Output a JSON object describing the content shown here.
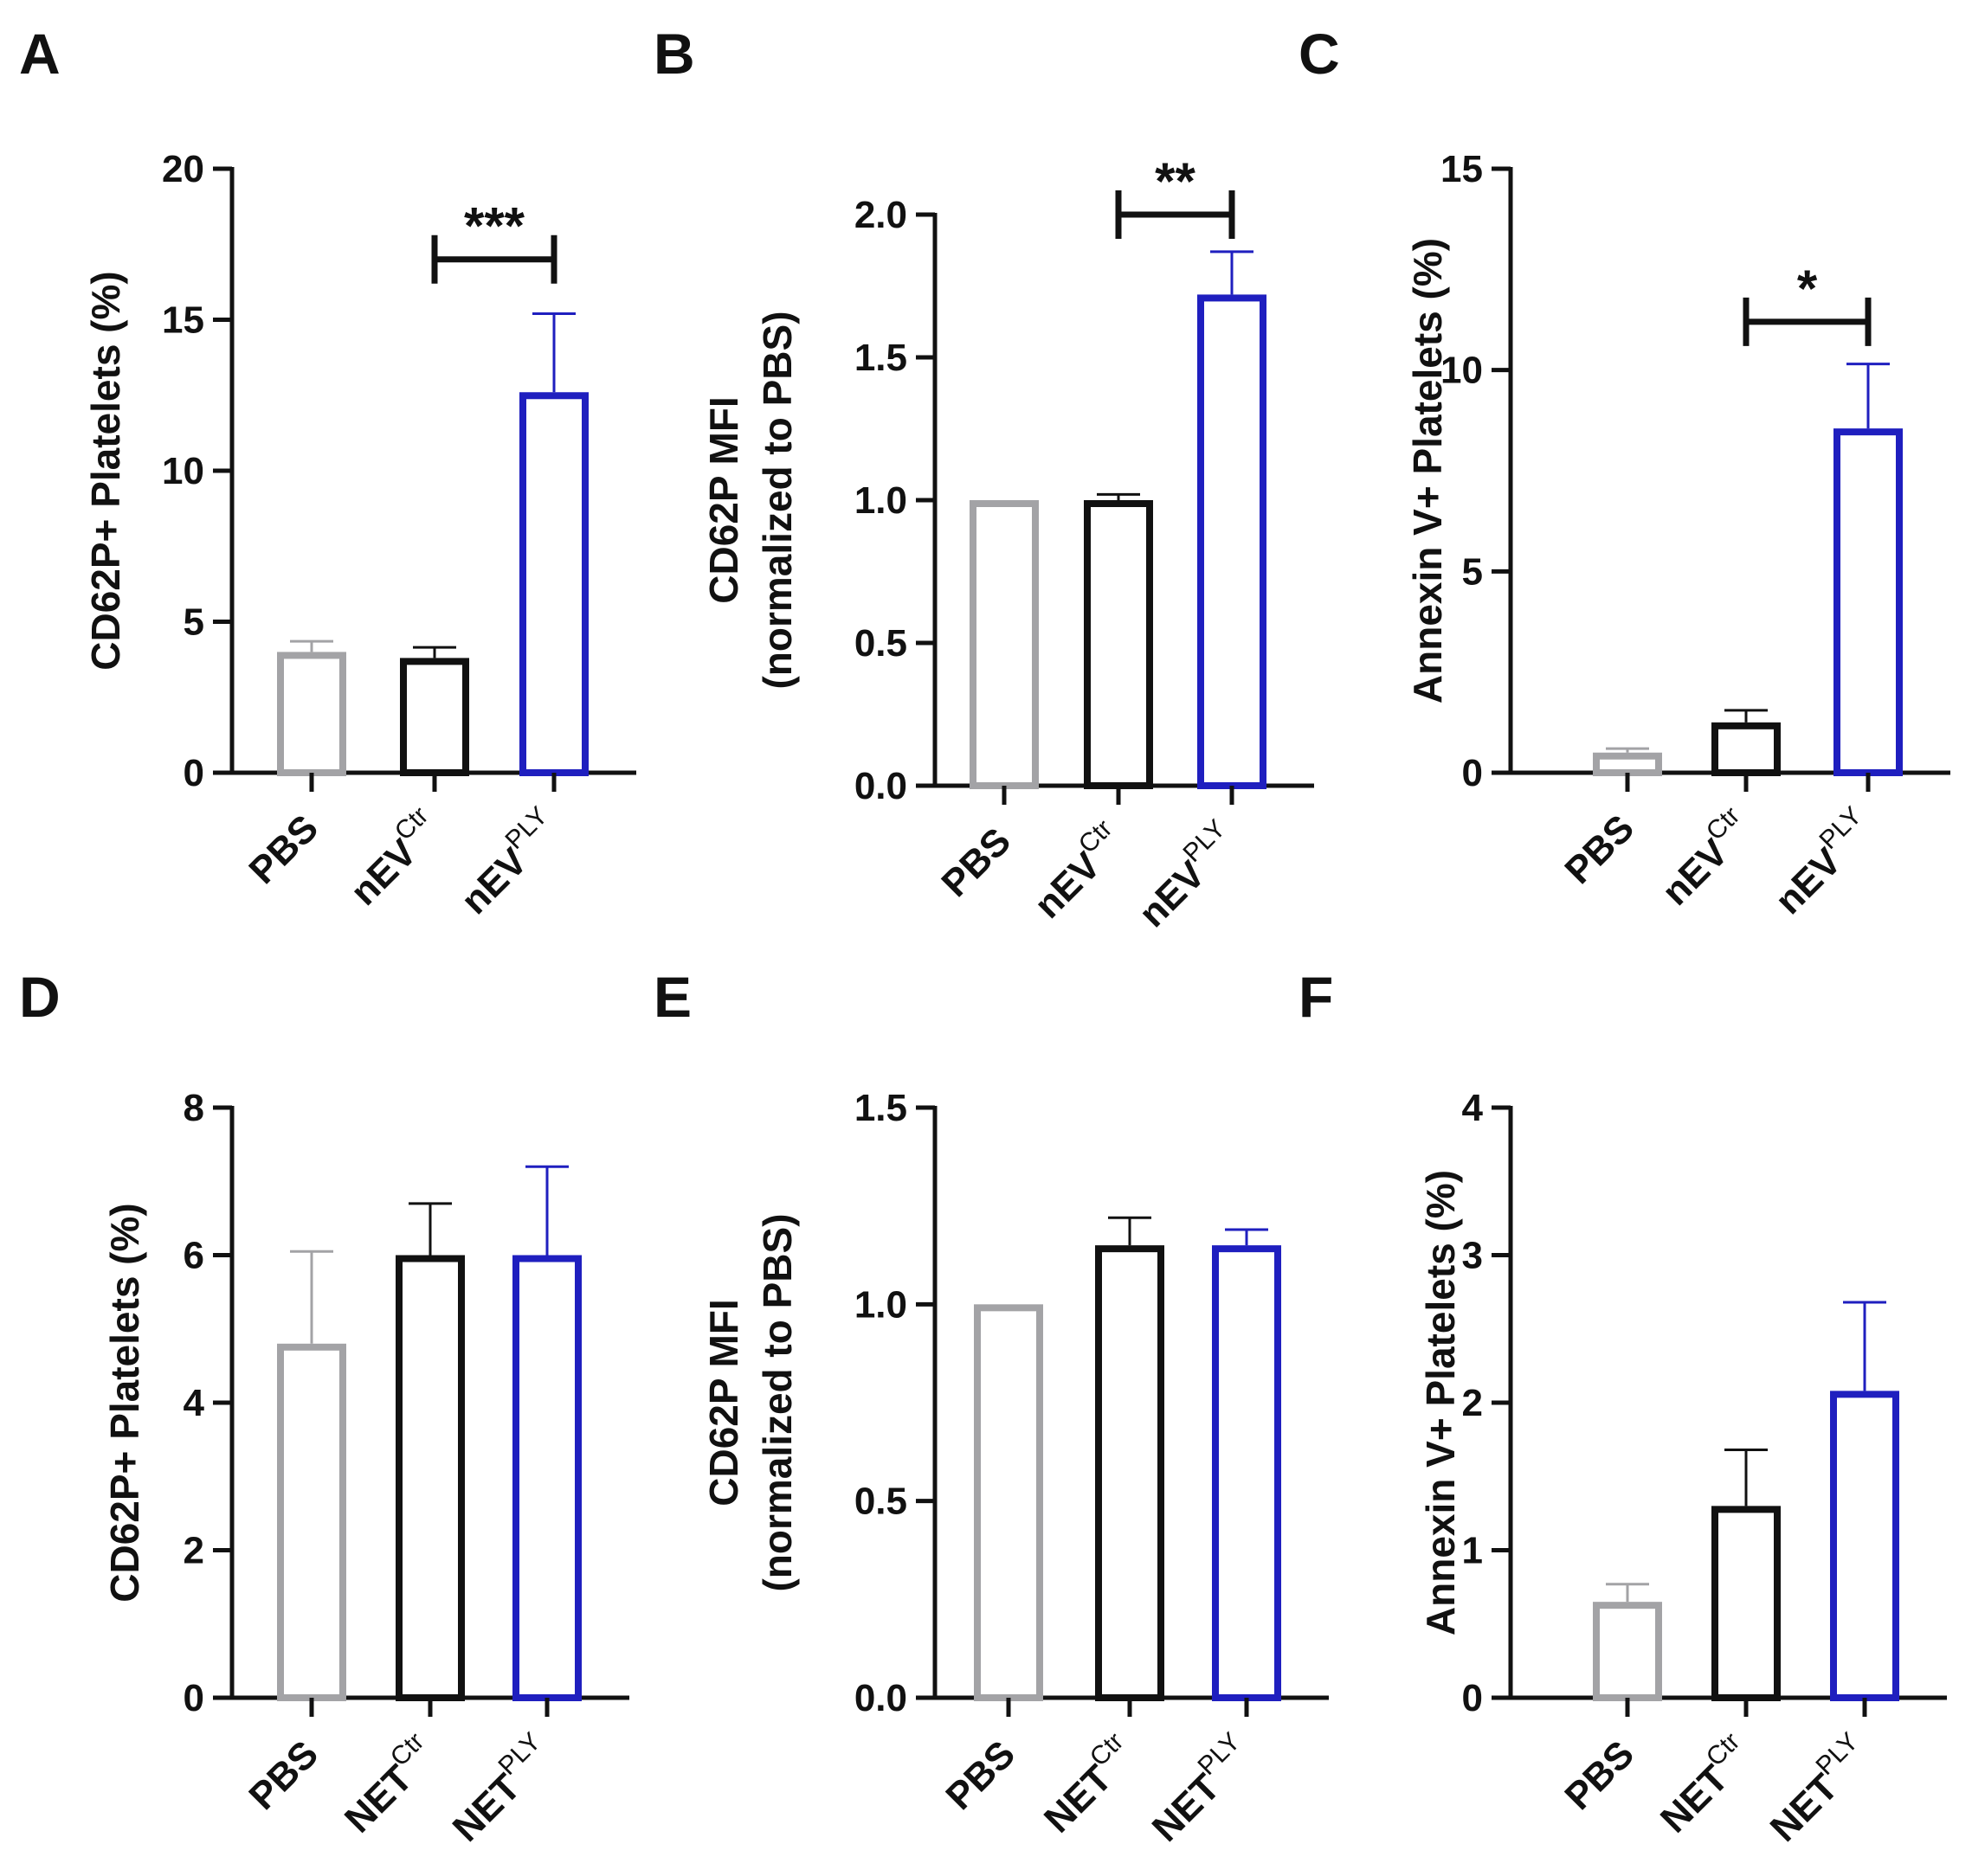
{
  "colors": {
    "PBS": "#a3a3a6",
    "Ctr": "#111111",
    "PLY": "#1f1fbf"
  },
  "chart_data": [
    {
      "type": "bar",
      "panel": "A",
      "ylabel": "CD62P+ Platelets (%)",
      "ylim": [
        0,
        20
      ],
      "yticks": [
        0,
        5,
        10,
        15,
        20
      ],
      "ytick_labels": [
        "0",
        "5",
        "10",
        "15",
        "20"
      ],
      "categories": [
        {
          "base": "PBS",
          "sup": "",
          "key": "PBS"
        },
        {
          "base": "nEV",
          "sup": "Ctr",
          "key": "Ctr"
        },
        {
          "base": "nEV",
          "sup": "PLY",
          "key": "PLY"
        }
      ],
      "values": [
        4.0,
        3.8,
        12.6
      ],
      "errors": [
        0.35,
        0.35,
        2.6
      ],
      "significance": {
        "from": 1,
        "to": 2,
        "label": "***",
        "y": 17.0
      }
    },
    {
      "type": "bar",
      "panel": "B",
      "ylabel": [
        "CD62P MFI",
        "(normalized to PBS)"
      ],
      "ylim": [
        0,
        2.0
      ],
      "yticks": [
        0,
        0.5,
        1.0,
        1.5,
        2.0
      ],
      "ytick_labels": [
        "0.0",
        "0.5",
        "1.0",
        "1.5",
        "2.0"
      ],
      "categories": [
        {
          "base": "PBS",
          "sup": "",
          "key": "PBS"
        },
        {
          "base": "nEV",
          "sup": "Ctr",
          "key": "Ctr"
        },
        {
          "base": "nEV",
          "sup": "PLY",
          "key": "PLY"
        }
      ],
      "values": [
        1.0,
        1.0,
        1.72
      ],
      "errors": [
        0.0,
        0.02,
        0.15
      ],
      "significance": {
        "from": 1,
        "to": 2,
        "label": "**",
        "y": 2.0
      }
    },
    {
      "type": "bar",
      "panel": "C",
      "ylabel": "Annexin V+ Platelets (%)",
      "ylim": [
        0,
        15
      ],
      "yticks": [
        0,
        5,
        10,
        15
      ],
      "ytick_labels": [
        "0",
        "5",
        "10",
        "15"
      ],
      "categories": [
        {
          "base": "PBS",
          "sup": "",
          "key": "PBS"
        },
        {
          "base": "nEV",
          "sup": "Ctr",
          "key": "Ctr"
        },
        {
          "base": "nEV",
          "sup": "PLY",
          "key": "PLY"
        }
      ],
      "values": [
        0.5,
        1.25,
        8.55
      ],
      "errors": [
        0.1,
        0.3,
        1.6
      ],
      "significance": {
        "from": 1,
        "to": 2,
        "label": "*",
        "y": 11.2
      }
    },
    {
      "type": "bar",
      "panel": "D",
      "ylabel": "CD62P+ Platelets (%)",
      "ylim": [
        0,
        8
      ],
      "yticks": [
        0,
        2,
        4,
        6,
        8
      ],
      "ytick_labels": [
        "0",
        "2",
        "4",
        "6",
        "8"
      ],
      "categories": [
        {
          "base": "PBS",
          "sup": "",
          "key": "PBS"
        },
        {
          "base": "NET",
          "sup": "Ctr",
          "key": "Ctr"
        },
        {
          "base": "NET",
          "sup": "PLY",
          "key": "PLY"
        }
      ],
      "values": [
        4.8,
        6.0,
        6.0
      ],
      "errors": [
        1.25,
        0.7,
        1.2
      ],
      "significance": null
    },
    {
      "type": "bar",
      "panel": "E",
      "ylabel": [
        "CD62P MFI",
        "(normalized to PBS)"
      ],
      "ylim": [
        0,
        1.5
      ],
      "yticks": [
        0,
        0.5,
        1.0,
        1.5
      ],
      "ytick_labels": [
        "0.0",
        "0.5",
        "1.0",
        "1.5"
      ],
      "categories": [
        {
          "base": "PBS",
          "sup": "",
          "key": "PBS"
        },
        {
          "base": "NET",
          "sup": "Ctr",
          "key": "Ctr"
        },
        {
          "base": "NET",
          "sup": "PLY",
          "key": "PLY"
        }
      ],
      "values": [
        1.0,
        1.15,
        1.15
      ],
      "errors": [
        0.0,
        0.07,
        0.04
      ],
      "significance": null
    },
    {
      "type": "bar",
      "panel": "F",
      "ylabel": "Annexin V+ Platelets (%)",
      "ylim": [
        0,
        4
      ],
      "yticks": [
        0,
        1,
        2,
        3,
        4
      ],
      "ytick_labels": [
        "0",
        "1",
        "2",
        "3",
        "4"
      ],
      "categories": [
        {
          "base": "PBS",
          "sup": "",
          "key": "PBS"
        },
        {
          "base": "NET",
          "sup": "Ctr",
          "key": "Ctr"
        },
        {
          "base": "NET",
          "sup": "PLY",
          "key": "PLY"
        }
      ],
      "values": [
        0.65,
        1.3,
        2.08
      ],
      "errors": [
        0.12,
        0.38,
        0.6
      ],
      "significance": null
    }
  ]
}
